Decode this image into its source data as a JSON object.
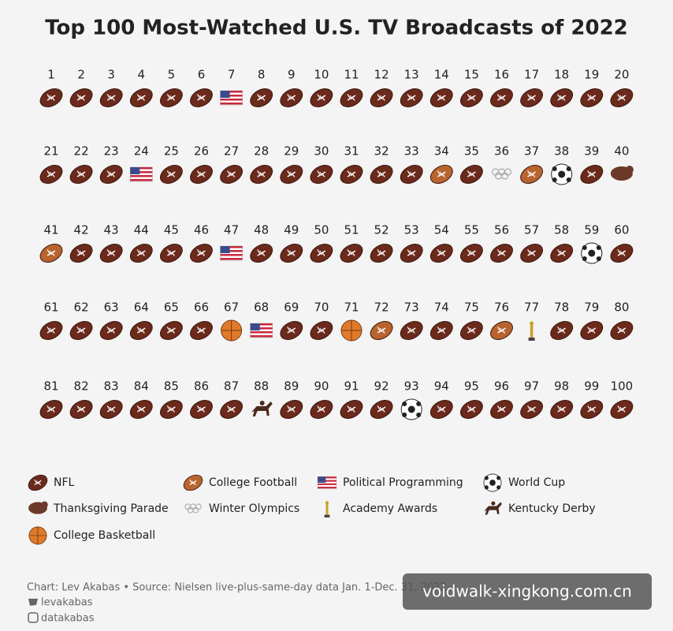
{
  "title": "Top 100 Most-Watched U.S. TV Broadcasts of 2022",
  "ranks": [
    1,
    2,
    3,
    4,
    5,
    6,
    7,
    8,
    9,
    10,
    11,
    12,
    13,
    14,
    15,
    16,
    17,
    18,
    19,
    20,
    21,
    22,
    23,
    24,
    25,
    26,
    27,
    28,
    29,
    30,
    31,
    32,
    33,
    34,
    35,
    36,
    37,
    38,
    39,
    40,
    41,
    42,
    43,
    44,
    45,
    46,
    47,
    48,
    49,
    50,
    51,
    52,
    53,
    54,
    55,
    56,
    57,
    58,
    59,
    60,
    61,
    62,
    63,
    64,
    65,
    66,
    67,
    68,
    69,
    70,
    71,
    72,
    73,
    74,
    75,
    76,
    77,
    78,
    79,
    80,
    81,
    82,
    83,
    84,
    85,
    86,
    87,
    88,
    89,
    90,
    91,
    92,
    93,
    94,
    95,
    96,
    97,
    98,
    99,
    100
  ],
  "kinds": [
    "NFL",
    "NFL",
    "NFL",
    "NFL",
    "NFL",
    "NFL",
    "Political Programming",
    "NFL",
    "NFL",
    "NFL",
    "NFL",
    "NFL",
    "NFL",
    "NFL",
    "NFL",
    "NFL",
    "NFL",
    "NFL",
    "NFL",
    "NFL",
    "NFL",
    "NFL",
    "NFL",
    "Political Programming",
    "NFL",
    "NFL",
    "NFL",
    "NFL",
    "NFL",
    "NFL",
    "NFL",
    "NFL",
    "NFL",
    "College Football",
    "NFL",
    "Winter Olympics",
    "College Football",
    "World Cup",
    "NFL",
    "Thanksgiving Parade",
    "College Football",
    "NFL",
    "NFL",
    "NFL",
    "NFL",
    "NFL",
    "Political Programming",
    "NFL",
    "NFL",
    "NFL",
    "NFL",
    "NFL",
    "NFL",
    "NFL",
    "NFL",
    "NFL",
    "NFL",
    "NFL",
    "World Cup",
    "NFL",
    "NFL",
    "NFL",
    "NFL",
    "NFL",
    "NFL",
    "NFL",
    "College Basketball",
    "Political Programming",
    "NFL",
    "NFL",
    "College Basketball",
    "College Football",
    "NFL",
    "NFL",
    "NFL",
    "College Football",
    "Academy Awards",
    "NFL",
    "NFL",
    "NFL",
    "NFL",
    "NFL",
    "NFL",
    "NFL",
    "NFL",
    "NFL",
    "NFL",
    "Kentucky Derby",
    "NFL",
    "NFL",
    "NFL",
    "NFL",
    "World Cup",
    "NFL",
    "NFL",
    "NFL",
    "NFL",
    "NFL",
    "NFL",
    "NFL"
  ],
  "legend": [
    {
      "name": "NFL"
    },
    {
      "name": "College Football"
    },
    {
      "name": "Political Programming"
    },
    {
      "name": "World Cup"
    },
    {
      "name": "Thanksgiving Parade"
    },
    {
      "name": "Winter Olympics"
    },
    {
      "name": "Academy Awards"
    },
    {
      "name": "Kentucky Derby"
    },
    {
      "name": "College Basketball"
    }
  ],
  "footer": {
    "source": "Chart: Lev Akabas • Source: Nielsen live-plus-same-day data Jan. 1-Dec. 31, 2022",
    "twitter": "levakabas",
    "instagram": "datakabas"
  },
  "watermark": "voidwalk-xingkong.com.cn"
}
